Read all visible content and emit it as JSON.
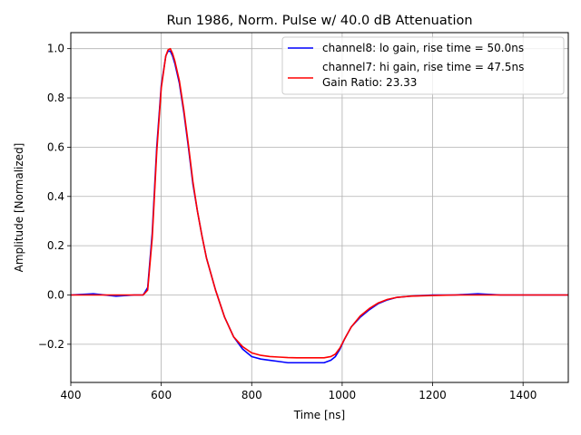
{
  "chart_data": {
    "type": "line",
    "title": "Run 1986, Norm. Pulse w/ 40.0 dB Attenuation",
    "xlabel": "Time [ns]",
    "ylabel": "Amplitude [Normalized]",
    "xlim": [
      400,
      1500
    ],
    "ylim": [
      -0.355,
      1.065
    ],
    "xticks": [
      400,
      600,
      800,
      1000,
      1200,
      1400
    ],
    "yticks": [
      -0.2,
      0.0,
      0.2,
      0.4,
      0.6,
      0.8,
      1.0
    ],
    "xtick_labels": [
      "400",
      "600",
      "800",
      "1000",
      "1200",
      "1400"
    ],
    "ytick_labels": [
      "−0.2",
      "0.0",
      "0.2",
      "0.4",
      "0.6",
      "0.8",
      "1.0"
    ],
    "grid": true,
    "legend_position": "top-right",
    "legend_extra_text": "Gain Ratio: 23.33",
    "series": [
      {
        "name": "channel8: lo gain, rise time = 50.0ns",
        "color": "#0000ff",
        "x": [
          400,
          450,
          500,
          540,
          560,
          570,
          580,
          590,
          600,
          610,
          615,
          620,
          625,
          630,
          640,
          650,
          660,
          670,
          680,
          690,
          700,
          720,
          740,
          760,
          780,
          800,
          820,
          840,
          860,
          880,
          900,
          920,
          940,
          960,
          975,
          985,
          995,
          1005,
          1020,
          1040,
          1060,
          1080,
          1100,
          1120,
          1150,
          1200,
          1250,
          1300,
          1350,
          1400,
          1450,
          1500
        ],
        "y": [
          0.0,
          0.005,
          -0.005,
          0.0,
          0.0,
          0.03,
          0.25,
          0.6,
          0.85,
          0.97,
          0.99,
          0.99,
          0.97,
          0.94,
          0.86,
          0.74,
          0.6,
          0.45,
          0.34,
          0.24,
          0.15,
          0.02,
          -0.09,
          -0.17,
          -0.22,
          -0.25,
          -0.26,
          -0.265,
          -0.27,
          -0.275,
          -0.275,
          -0.275,
          -0.275,
          -0.275,
          -0.265,
          -0.25,
          -0.22,
          -0.18,
          -0.13,
          -0.09,
          -0.06,
          -0.035,
          -0.02,
          -0.01,
          -0.005,
          0.0,
          0.0,
          0.005,
          0.0,
          0.0,
          0.0,
          0.0
        ]
      },
      {
        "name": "channel7: hi gain, rise time = 47.5ns",
        "color": "#ff0000",
        "x": [
          400,
          450,
          500,
          540,
          560,
          570,
          580,
          590,
          600,
          610,
          615,
          620,
          625,
          630,
          640,
          650,
          660,
          670,
          680,
          690,
          700,
          720,
          740,
          760,
          780,
          800,
          820,
          840,
          860,
          880,
          900,
          920,
          940,
          960,
          975,
          985,
          995,
          1005,
          1020,
          1040,
          1060,
          1080,
          1100,
          1120,
          1150,
          1200,
          1250,
          1300,
          1350,
          1400,
          1450,
          1500
        ],
        "y": [
          0.0,
          0.0,
          0.0,
          0.0,
          0.0,
          0.02,
          0.23,
          0.58,
          0.84,
          0.97,
          0.995,
          1.0,
          0.98,
          0.95,
          0.87,
          0.75,
          0.61,
          0.46,
          0.34,
          0.24,
          0.15,
          0.02,
          -0.09,
          -0.17,
          -0.21,
          -0.235,
          -0.245,
          -0.25,
          -0.252,
          -0.254,
          -0.255,
          -0.255,
          -0.255,
          -0.255,
          -0.25,
          -0.24,
          -0.215,
          -0.18,
          -0.13,
          -0.085,
          -0.055,
          -0.032,
          -0.018,
          -0.01,
          -0.005,
          -0.002,
          0.0,
          0.0,
          0.0,
          0.0,
          0.0,
          0.0
        ]
      }
    ]
  }
}
